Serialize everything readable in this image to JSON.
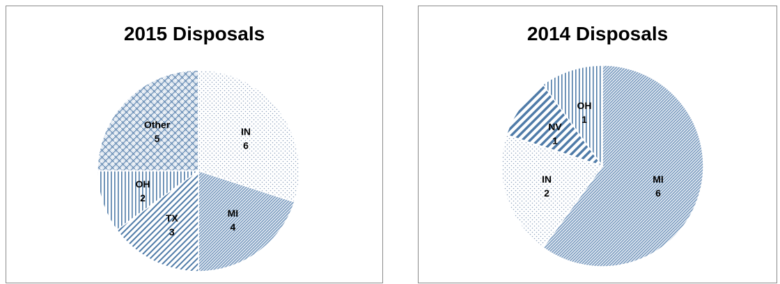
{
  "colors": {
    "pattern_blue": "#4f7ba8",
    "dots": "#8fa3bd",
    "label": "#000000",
    "border": "#8a8a8a"
  },
  "chart_data": [
    {
      "type": "pie",
      "title": "2015 Disposals",
      "slices": [
        {
          "label": "IN",
          "value": 6,
          "pattern": "dots"
        },
        {
          "label": "MI",
          "value": 4,
          "pattern": "dense-diagonal"
        },
        {
          "label": "TX",
          "value": 3,
          "pattern": "diagonal-stripes"
        },
        {
          "label": "OH",
          "value": 2,
          "pattern": "vertical-stripes"
        },
        {
          "label": "Other",
          "value": 5,
          "pattern": "weave"
        }
      ]
    },
    {
      "type": "pie",
      "title": "2014 Disposals",
      "slices": [
        {
          "label": "MI",
          "value": 6,
          "pattern": "dense-diagonal"
        },
        {
          "label": "IN",
          "value": 2,
          "pattern": "dots"
        },
        {
          "label": "NV",
          "value": 1,
          "pattern": "wide-diagonal"
        },
        {
          "label": "OH",
          "value": 1,
          "pattern": "vertical-stripes"
        }
      ]
    }
  ]
}
